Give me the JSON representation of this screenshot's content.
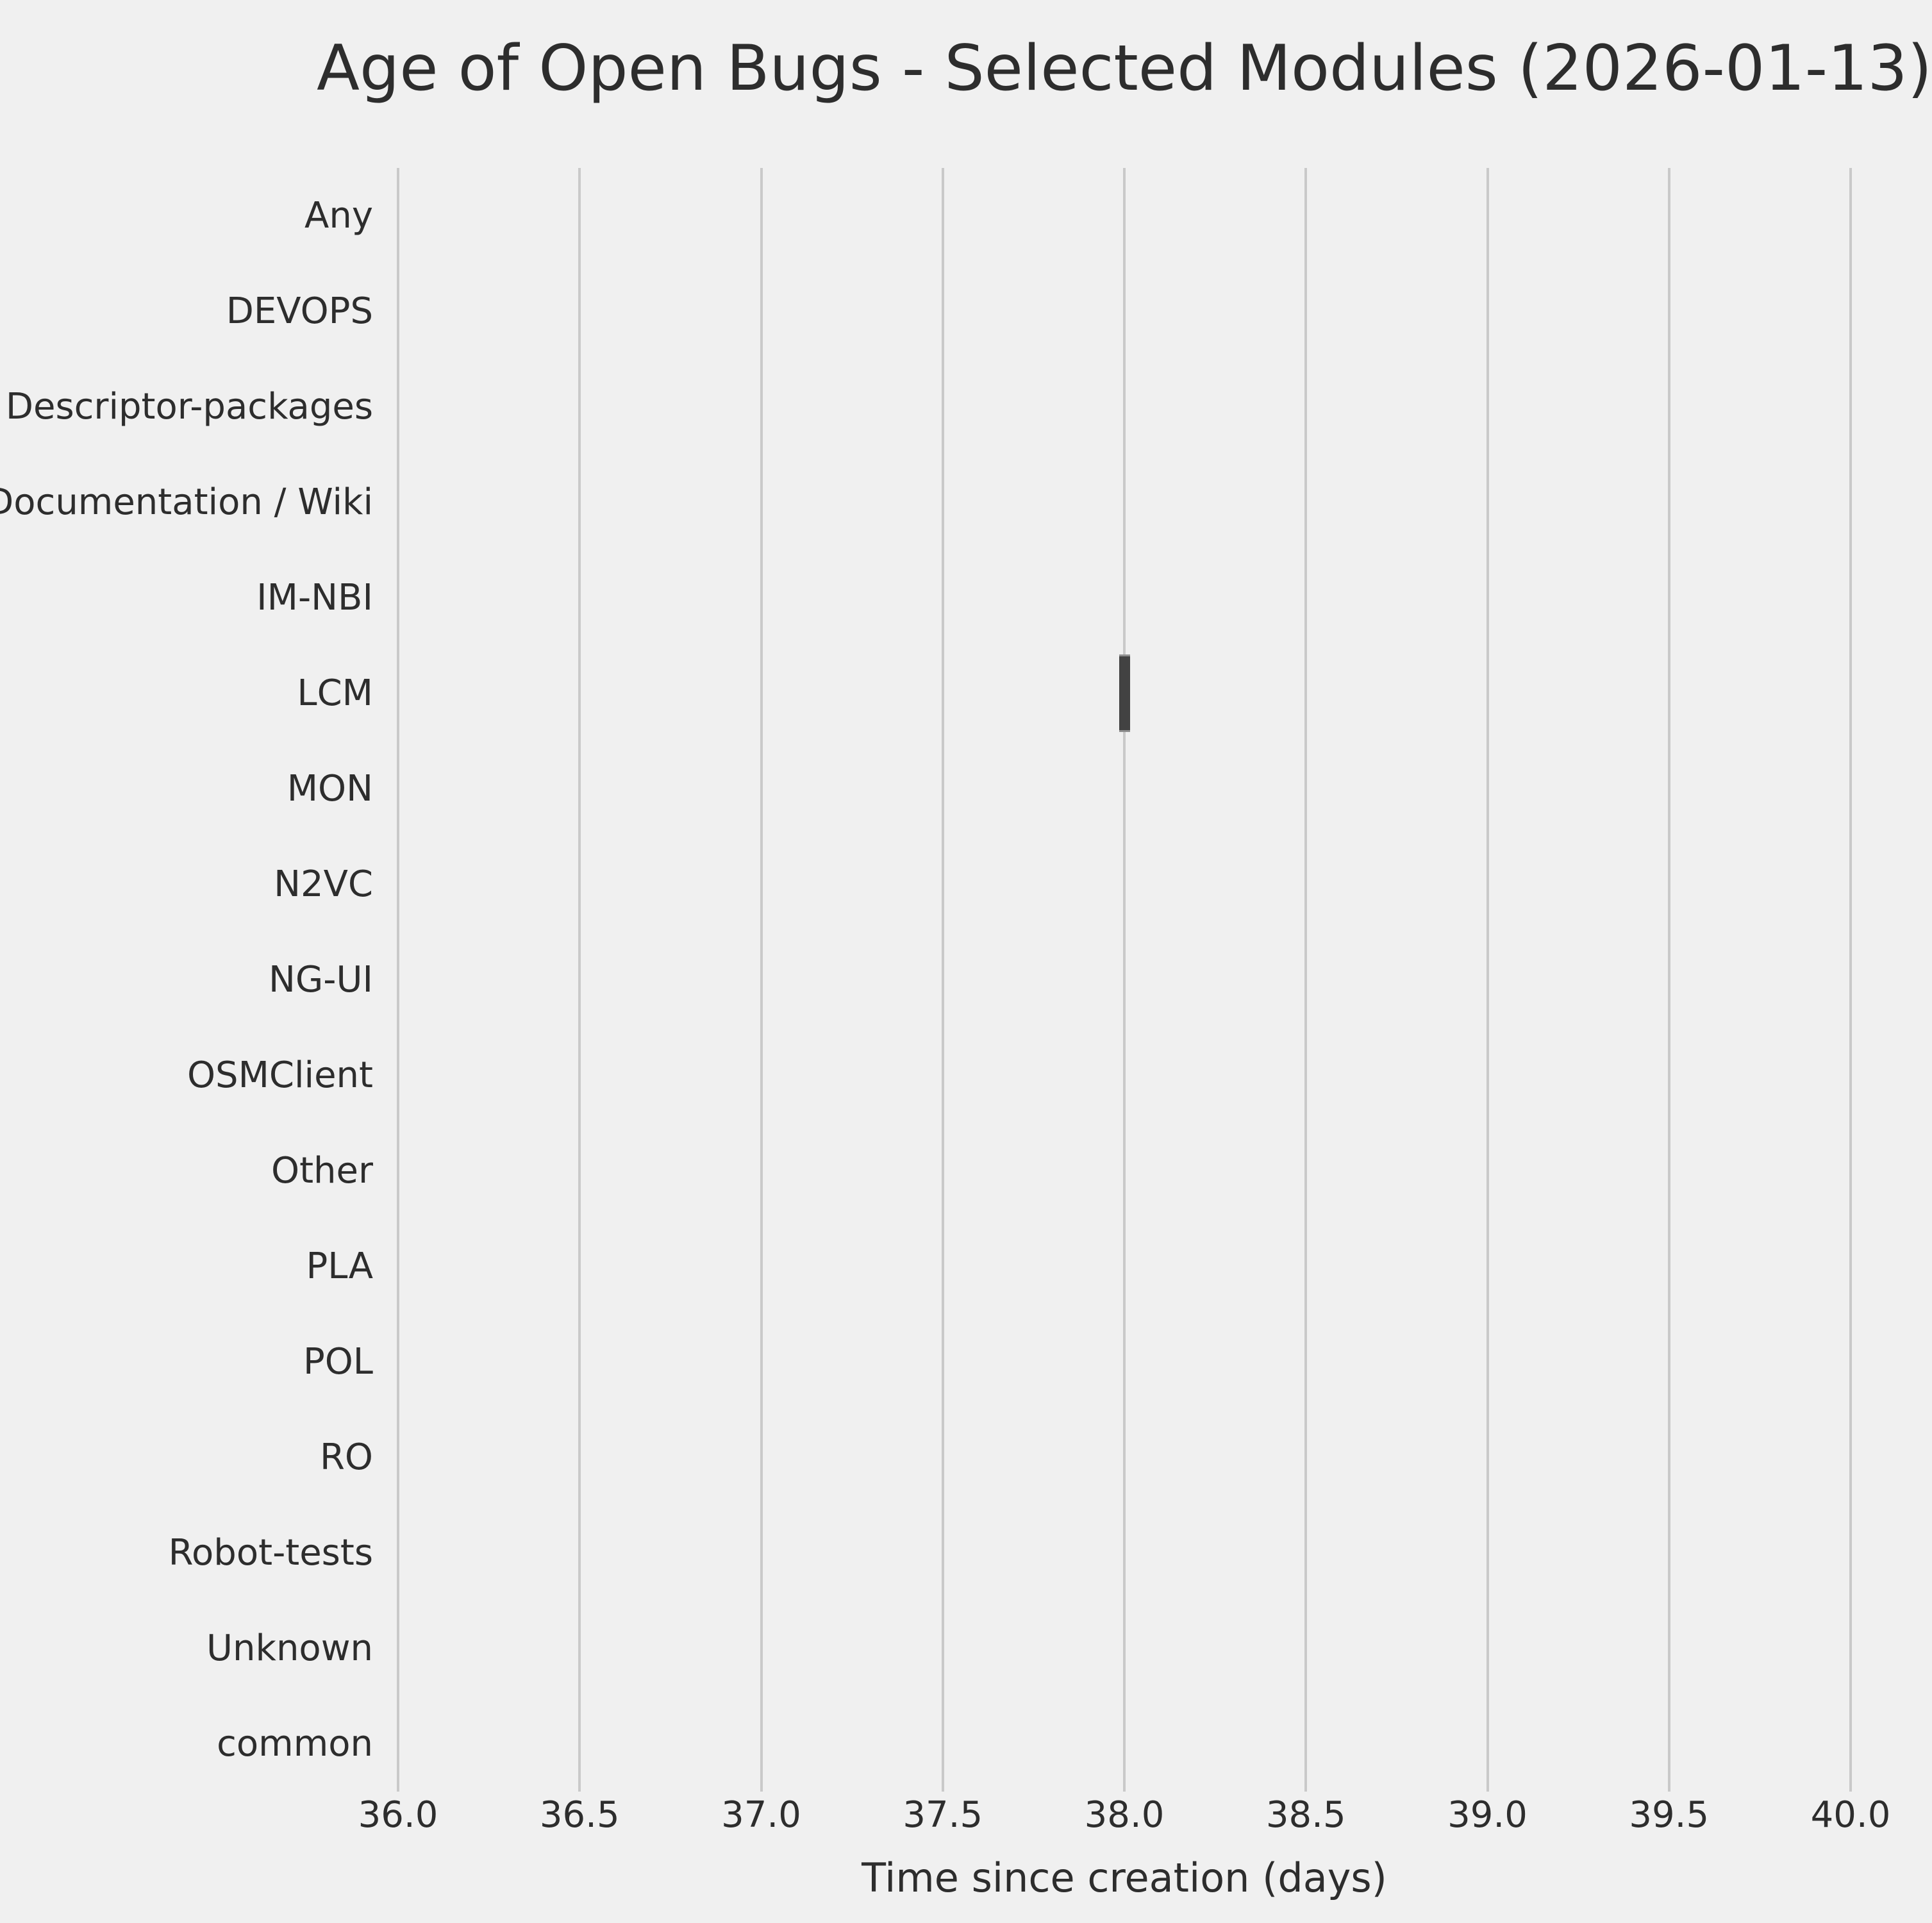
{
  "style": {
    "background_color": "#f0f0f0",
    "grid_color": "#c9c9c9",
    "text_color": "#2d2d2d",
    "box_fill_color": "#424242",
    "box_edge_color": "#8f8f8f"
  },
  "chart_data": {
    "type": "boxplot",
    "orientation": "horizontal",
    "title": "Age of Open Bugs - Selected Modules (2026-01-13)",
    "xlabel": "Time since creation (days)",
    "ylabel": "",
    "categories": [
      "Any",
      "DEVOPS",
      "Descriptor-packages",
      "Documentation / Wiki",
      "IM-NBI",
      "LCM",
      "MON",
      "N2VC",
      "NG-UI",
      "OSMClient",
      "Other",
      "PLA",
      "POL",
      "RO",
      "Robot-tests",
      "Unknown",
      "common"
    ],
    "series": [
      {
        "name": "LCM",
        "values": [
          38.0
        ],
        "box": {
          "whisker_low": 38.0,
          "q1": 38.0,
          "median": 38.0,
          "q3": 38.0,
          "whisker_high": 38.0
        }
      }
    ],
    "xticks": [
      36.0,
      36.5,
      37.0,
      37.5,
      38.0,
      38.5,
      39.0,
      39.5,
      40.0
    ],
    "xtick_labels": [
      "36.0",
      "36.5",
      "37.0",
      "37.5",
      "38.0",
      "38.5",
      "39.0",
      "39.5",
      "40.0"
    ],
    "xlim": [
      36.0,
      40.0
    ],
    "grid": "vertical",
    "legend": "none"
  }
}
